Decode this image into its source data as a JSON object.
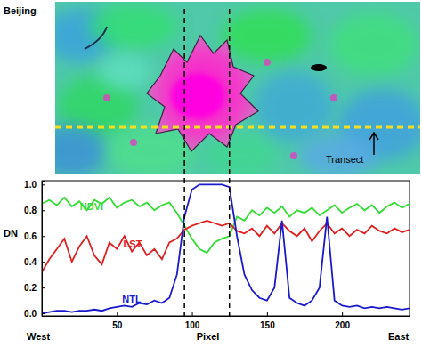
{
  "chart_data": {
    "type": "line",
    "image": {
      "label": "Beijing",
      "annotation": "Transect"
    },
    "x_label": "Pixel",
    "y_label": "DN",
    "x_direction_labels": [
      "West",
      "East"
    ],
    "x": [
      0,
      5,
      10,
      15,
      20,
      25,
      30,
      35,
      40,
      45,
      50,
      55,
      60,
      65,
      70,
      75,
      80,
      85,
      90,
      95,
      100,
      105,
      110,
      115,
      120,
      125,
      130,
      135,
      140,
      145,
      150,
      155,
      160,
      165,
      170,
      175,
      180,
      185,
      190,
      195,
      200,
      205,
      210,
      215,
      220,
      225,
      230,
      235,
      240,
      245
    ],
    "series": [
      {
        "name": "NDVI",
        "color": "#33dd33",
        "values": [
          0.85,
          0.88,
          0.84,
          0.9,
          0.83,
          0.87,
          0.8,
          0.88,
          0.85,
          0.9,
          0.82,
          0.86,
          0.88,
          0.83,
          0.86,
          0.8,
          0.84,
          0.86,
          0.78,
          0.68,
          0.58,
          0.5,
          0.47,
          0.55,
          0.58,
          0.6,
          0.75,
          0.72,
          0.8,
          0.76,
          0.82,
          0.78,
          0.83,
          0.75,
          0.8,
          0.78,
          0.82,
          0.76,
          0.8,
          0.84,
          0.78,
          0.82,
          0.85,
          0.8,
          0.84,
          0.78,
          0.83,
          0.86,
          0.82,
          0.85
        ]
      },
      {
        "name": "LST",
        "color": "#e02020",
        "values": [
          0.32,
          0.42,
          0.5,
          0.58,
          0.4,
          0.52,
          0.6,
          0.45,
          0.38,
          0.55,
          0.5,
          0.6,
          0.48,
          0.55,
          0.45,
          0.5,
          0.42,
          0.55,
          0.58,
          0.65,
          0.68,
          0.7,
          0.72,
          0.7,
          0.68,
          0.7,
          0.64,
          0.62,
          0.66,
          0.6,
          0.68,
          0.62,
          0.7,
          0.64,
          0.6,
          0.66,
          0.56,
          0.64,
          0.7,
          0.62,
          0.66,
          0.6,
          0.65,
          0.62,
          0.68,
          0.64,
          0.62,
          0.66,
          0.63,
          0.65
        ]
      },
      {
        "name": "NTL",
        "color": "#1a1acc",
        "values": [
          0,
          0.01,
          0.02,
          0.02,
          0.01,
          0.02,
          0.02,
          0.03,
          0.02,
          0.04,
          0.05,
          0.06,
          0.05,
          0.08,
          0.07,
          0.1,
          0.08,
          0.12,
          0.3,
          0.75,
          0.96,
          1.0,
          1.0,
          1.0,
          1.0,
          0.98,
          0.6,
          0.3,
          0.18,
          0.12,
          0.1,
          0.2,
          0.72,
          0.12,
          0.08,
          0.06,
          0.1,
          0.2,
          0.75,
          0.1,
          0.06,
          0.05,
          0.06,
          0.04,
          0.05,
          0.04,
          0.05,
          0.04,
          0.03,
          0.04
        ]
      }
    ],
    "vlines": [
      95,
      125
    ],
    "xlim": [
      0,
      245
    ],
    "xticks": [
      50,
      100,
      150,
      200
    ],
    "ylim": [
      -0.02,
      1.03
    ],
    "yticks": [
      {
        "value": 0,
        "label": "0.0"
      },
      {
        "value": 0.2,
        "label": "0.2"
      },
      {
        "value": 0.4,
        "label": "0.4"
      },
      {
        "value": 0.6,
        "label": "0.6"
      },
      {
        "value": 0.8,
        "label": "0.8"
      },
      {
        "value": 1,
        "label": "1.0"
      }
    ]
  }
}
